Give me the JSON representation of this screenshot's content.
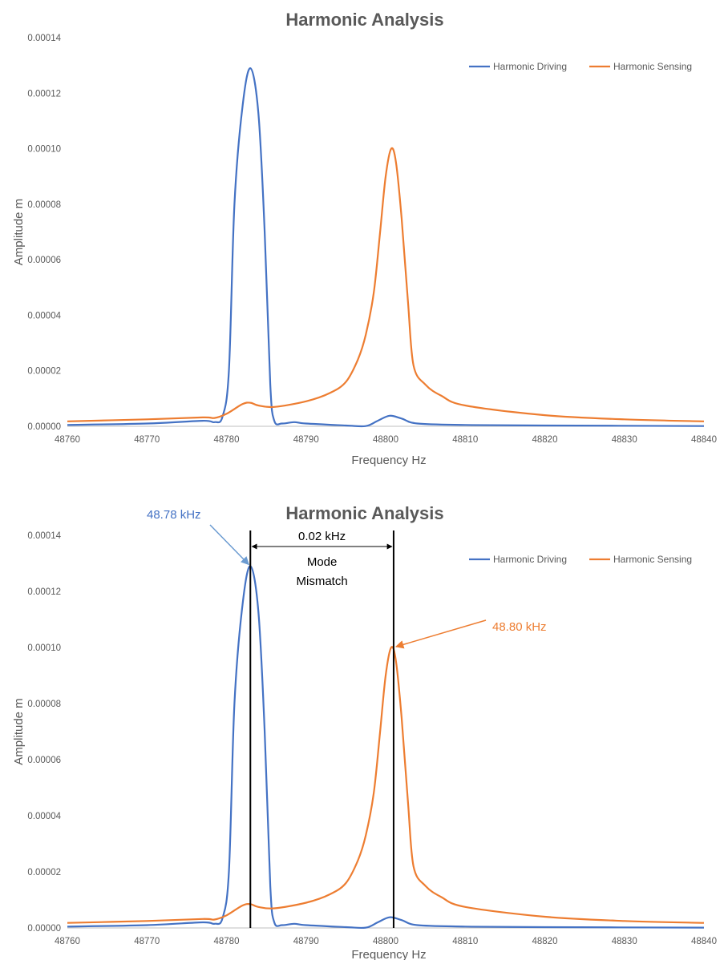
{
  "chart_data": [
    {
      "type": "line",
      "title": "Harmonic Analysis",
      "xlabel": "Frequency  Hz",
      "ylabel": "Amplitude  m",
      "xlim": [
        48760,
        48840
      ],
      "ylim": [
        0,
        0.00014
      ],
      "x_ticks": [
        "48760",
        "48770",
        "48780",
        "48790",
        "48800",
        "48810",
        "48820",
        "48830",
        "48840"
      ],
      "y_ticks": [
        "0.00000",
        "0.00002",
        "0.00004",
        "0.00006",
        "0.00008",
        "0.00010",
        "0.00012",
        "0.00014"
      ],
      "grid": false,
      "legend": "top-right",
      "series": [
        {
          "name": "Harmonic Driving",
          "color": "#4472C4",
          "points": [
            [
              48760,
              5e-07
            ],
            [
              48770,
              1e-06
            ],
            [
              48777,
              2e-06
            ],
            [
              48778.5,
              1.5e-06
            ],
            [
              48779.5,
              3.5e-06
            ],
            [
              48780.3,
              2e-05
            ],
            [
              48781,
              8e-05
            ],
            [
              48782,
              0.000115
            ],
            [
              48783,
              0.000129
            ],
            [
              48784,
              0.000113
            ],
            [
              48784.8,
              7e-05
            ],
            [
              48785.5,
              1.5e-05
            ],
            [
              48786,
              2e-06
            ],
            [
              48787,
              1e-06
            ],
            [
              48788.5,
              1.5e-06
            ],
            [
              48790,
              1e-06
            ],
            [
              48795,
              3e-07
            ],
            [
              48797.5,
              1e-07
            ],
            [
              48799,
              2e-06
            ],
            [
              48800.5,
              3.8e-06
            ],
            [
              48802,
              2.8e-06
            ],
            [
              48804,
              1e-06
            ],
            [
              48810,
              5e-07
            ],
            [
              48820,
              3e-07
            ],
            [
              48840,
              1e-07
            ]
          ]
        },
        {
          "name": "Harmonic Sensing",
          "color": "#ED7D31",
          "points": [
            [
              48760,
              1.8e-06
            ],
            [
              48770,
              2.5e-06
            ],
            [
              48777,
              3.2e-06
            ],
            [
              48778.5,
              3e-06
            ],
            [
              48780,
              4.5e-06
            ],
            [
              48782,
              8e-06
            ],
            [
              48783,
              8.5e-06
            ],
            [
              48784,
              7.5e-06
            ],
            [
              48786,
              7e-06
            ],
            [
              48790,
              9e-06
            ],
            [
              48793,
              1.2e-05
            ],
            [
              48795,
              1.6e-05
            ],
            [
              48796.5,
              2.4e-05
            ],
            [
              48797.5,
              3.3e-05
            ],
            [
              48798.5,
              4.8e-05
            ],
            [
              48799.3,
              7e-05
            ],
            [
              48800,
              9e-05
            ],
            [
              48800.7,
              0.0001
            ],
            [
              48801.3,
              9.5e-05
            ],
            [
              48802,
              7.5e-05
            ],
            [
              48802.8,
              4.5e-05
            ],
            [
              48803.5,
              2.2e-05
            ],
            [
              48805,
              1.5e-05
            ],
            [
              48807,
              1.1e-05
            ],
            [
              48810,
              7.5e-06
            ],
            [
              48820,
              4e-06
            ],
            [
              48830,
              2.5e-06
            ],
            [
              48840,
              1.8e-06
            ]
          ]
        }
      ]
    },
    {
      "type": "line",
      "title": "Harmonic Analysis",
      "xlabel": "Frequency  Hz",
      "ylabel": "Amplitude  m",
      "xlim": [
        48760,
        48840
      ],
      "ylim": [
        0,
        0.00014
      ],
      "x_ticks": [
        "48760",
        "48770",
        "48780",
        "48790",
        "48800",
        "48810",
        "48820",
        "48830",
        "48840"
      ],
      "y_ticks": [
        "0.00000",
        "0.00002",
        "0.00004",
        "0.00006",
        "0.00008",
        "0.00010",
        "0.00012",
        "0.00014"
      ],
      "grid": false,
      "legend": "top-right",
      "annotations": {
        "peak_driving_label": "48.78 kHz",
        "peak_sensing_label": "48.80 kHz",
        "gap_label": "0.02 kHz",
        "mismatch_line1": "Mode",
        "mismatch_line2": "Mismatch",
        "marker_x": [
          48783,
          48801
        ],
        "driving_color": "#4472C4",
        "sensing_color": "#ED7D31"
      },
      "series": [
        {
          "name": "Harmonic Driving",
          "color": "#4472C4",
          "points": [
            [
              48760,
              5e-07
            ],
            [
              48770,
              1e-06
            ],
            [
              48777,
              2e-06
            ],
            [
              48778.5,
              1.5e-06
            ],
            [
              48779.5,
              3.5e-06
            ],
            [
              48780.3,
              2e-05
            ],
            [
              48781,
              8e-05
            ],
            [
              48782,
              0.000115
            ],
            [
              48783,
              0.000129
            ],
            [
              48784,
              0.000113
            ],
            [
              48784.8,
              7e-05
            ],
            [
              48785.5,
              1.5e-05
            ],
            [
              48786,
              2e-06
            ],
            [
              48787,
              1e-06
            ],
            [
              48788.5,
              1.5e-06
            ],
            [
              48790,
              1e-06
            ],
            [
              48795,
              3e-07
            ],
            [
              48797.5,
              1e-07
            ],
            [
              48799,
              2e-06
            ],
            [
              48800.5,
              3.8e-06
            ],
            [
              48802,
              2.8e-06
            ],
            [
              48804,
              1e-06
            ],
            [
              48810,
              5e-07
            ],
            [
              48820,
              3e-07
            ],
            [
              48840,
              1e-07
            ]
          ]
        },
        {
          "name": "Harmonic Sensing",
          "color": "#ED7D31",
          "points": [
            [
              48760,
              1.8e-06
            ],
            [
              48770,
              2.5e-06
            ],
            [
              48777,
              3.2e-06
            ],
            [
              48778.5,
              3e-06
            ],
            [
              48780,
              4.5e-06
            ],
            [
              48782,
              8e-06
            ],
            [
              48783,
              8.5e-06
            ],
            [
              48784,
              7.5e-06
            ],
            [
              48786,
              7e-06
            ],
            [
              48790,
              9e-06
            ],
            [
              48793,
              1.2e-05
            ],
            [
              48795,
              1.6e-05
            ],
            [
              48796.5,
              2.4e-05
            ],
            [
              48797.5,
              3.3e-05
            ],
            [
              48798.5,
              4.8e-05
            ],
            [
              48799.3,
              7e-05
            ],
            [
              48800,
              9e-05
            ],
            [
              48800.7,
              0.0001
            ],
            [
              48801.3,
              9.5e-05
            ],
            [
              48802,
              7.5e-05
            ],
            [
              48802.8,
              4.5e-05
            ],
            [
              48803.5,
              2.2e-05
            ],
            [
              48805,
              1.5e-05
            ],
            [
              48807,
              1.1e-05
            ],
            [
              48810,
              7.5e-06
            ],
            [
              48820,
              4e-06
            ],
            [
              48830,
              2.5e-06
            ],
            [
              48840,
              1.8e-06
            ]
          ]
        }
      ]
    }
  ]
}
